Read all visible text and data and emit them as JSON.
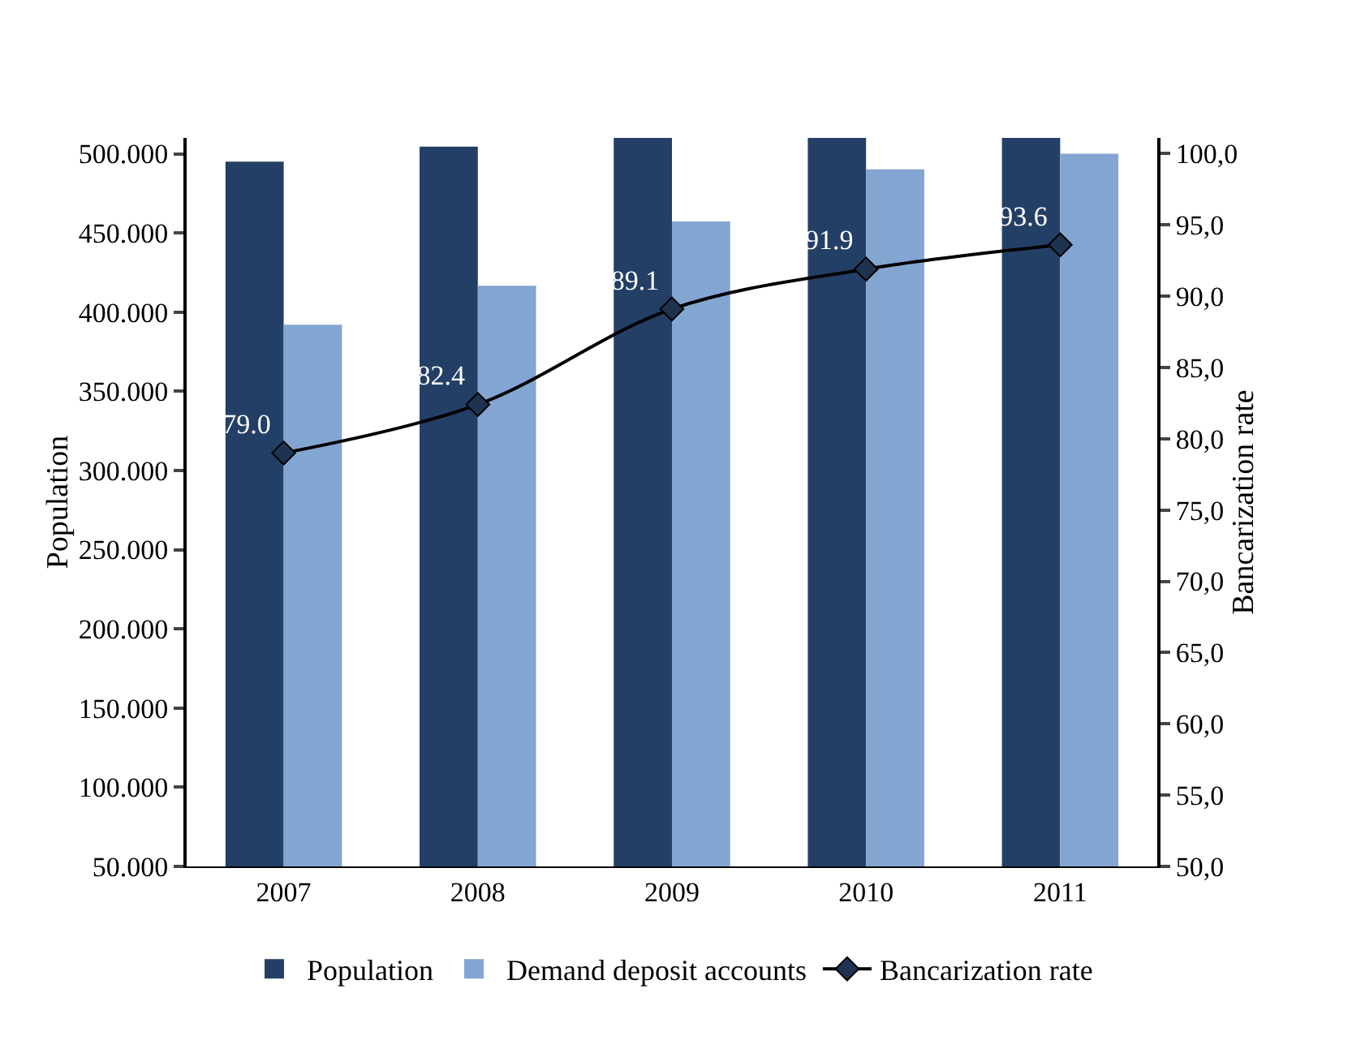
{
  "chart_data": {
    "type": "bar",
    "categories": [
      "2007",
      "2008",
      "2009",
      "2010",
      "2011"
    ],
    "series": [
      {
        "name": "Population",
        "color": "#243f66",
        "values": [
          495000,
          504500,
          510000,
          510000,
          510000
        ]
      },
      {
        "name": "Demand deposit accounts",
        "color": "#83a5d1",
        "values": [
          392000,
          416600,
          457300,
          490200,
          500000
        ]
      },
      {
        "name": "Bancarization rate",
        "type": "line",
        "axis": "y2",
        "color": "#000000",
        "marker": "diamond",
        "values": [
          79.0,
          82.4,
          89.1,
          91.9,
          93.6
        ],
        "value_labels": [
          "79.0",
          "82.4",
          "89.1",
          "91.9",
          "93.6"
        ]
      }
    ],
    "ylabel": "Population",
    "y2label": "Bancarization rate",
    "ylim": [
      50000,
      510000
    ],
    "yticks": [
      {
        "value": 50000,
        "label": "50.000"
      },
      {
        "value": 100000,
        "label": "100.000"
      },
      {
        "value": 150000,
        "label": "150.000"
      },
      {
        "value": 200000,
        "label": "200.000"
      },
      {
        "value": 250000,
        "label": "250.000"
      },
      {
        "value": 300000,
        "label": "300.000"
      },
      {
        "value": 350000,
        "label": "350.000"
      },
      {
        "value": 400000,
        "label": "400.000"
      },
      {
        "value": 450000,
        "label": "450.000"
      },
      {
        "value": 500000,
        "label": "500.000"
      }
    ],
    "y2lim": [
      50,
      101.1
    ],
    "y2ticks": [
      {
        "value": 50,
        "label": "50,0"
      },
      {
        "value": 55,
        "label": "55,0"
      },
      {
        "value": 60,
        "label": "60,0"
      },
      {
        "value": 65,
        "label": "65,0"
      },
      {
        "value": 70,
        "label": "70,0"
      },
      {
        "value": 75,
        "label": "75,0"
      },
      {
        "value": 80,
        "label": "80,0"
      },
      {
        "value": 85,
        "label": "85,0"
      },
      {
        "value": 90,
        "label": "90,0"
      },
      {
        "value": 95,
        "label": "95,0"
      },
      {
        "value": 100,
        "label": "100,0"
      }
    ],
    "grid": false,
    "legend": "bottom"
  }
}
